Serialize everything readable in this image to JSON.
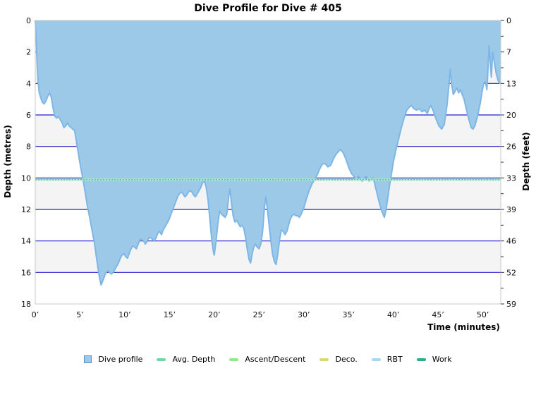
{
  "title": "Dive Profile for Dive # 405",
  "axes": {
    "x": {
      "label": "Time (minutes)",
      "tick_labels": [
        "0’",
        "5’",
        "10’",
        "15’",
        "20’",
        "25’",
        "30’",
        "35’",
        "40’",
        "45’",
        "50’"
      ],
      "tick_minutes": [
        0,
        5,
        10,
        15,
        20,
        25,
        30,
        35,
        40,
        45,
        50
      ],
      "max_minutes": 52
    },
    "y_left": {
      "label": "Depth (metres)",
      "tick_labels": [
        "0",
        "2",
        "4",
        "6",
        "8",
        "10",
        "12",
        "14",
        "16",
        "18"
      ],
      "tick_metres": [
        0,
        2,
        4,
        6,
        8,
        10,
        12,
        14,
        16,
        18
      ],
      "max_metres": 18
    },
    "y_right": {
      "label": "Depth (feet)",
      "tick_labels": [
        "0",
        "7",
        "13",
        "20",
        "26",
        "33",
        "39",
        "46",
        "52",
        "59"
      ],
      "tick_metres": [
        0,
        2,
        4,
        6,
        8,
        10,
        12,
        14,
        16,
        18
      ]
    }
  },
  "legend": {
    "items": [
      {
        "label": "Dive profile",
        "shape": "square",
        "color": "#9DC9E8",
        "border": "#5B8FC4"
      },
      {
        "label": "Avg. Depth",
        "shape": "line",
        "color": "#6FD9A5"
      },
      {
        "label": "Ascent/Descent",
        "shape": "line",
        "color": "#90E890"
      },
      {
        "label": "Deco.",
        "shape": "line",
        "color": "#D5DE70"
      },
      {
        "label": "RBT",
        "shape": "line",
        "color": "#A9D9F2"
      },
      {
        "label": "Work",
        "shape": "line",
        "color": "#2FAE85"
      }
    ]
  },
  "chart_data": {
    "type": "area",
    "title": "Dive Profile for Dive # 405",
    "xlabel": "Time (minutes)",
    "ylabel_left": "Depth (metres)",
    "ylabel_right": "Depth (feet)",
    "x_range_minutes": [
      0,
      52
    ],
    "depth_range_metres": [
      0,
      18
    ],
    "avg_depth_metres": 10.1,
    "max_depth_metres": 16.8,
    "grid": {
      "gridlines_metres": [
        2,
        4,
        6,
        8,
        10,
        12,
        14,
        16
      ],
      "gray_bands_metres": [
        [
          2,
          4
        ],
        [
          6,
          8
        ],
        [
          10,
          12
        ],
        [
          14,
          16
        ]
      ],
      "minor_tick_metres_right": [
        1,
        3,
        5,
        7,
        9,
        11,
        13,
        15,
        17
      ]
    },
    "colors": {
      "profile_fill": "#9DC9E8",
      "profile_line": "#7EB6E6",
      "gridline": "#2323CB",
      "band": "#F4F4F4",
      "plot_border": "#C9C9C9",
      "avg_depth_line": "#58C995",
      "avg_depth_underlay": "#AEE8CC"
    },
    "series": [
      {
        "name": "Dive profile",
        "points_time_depth": [
          [
            0,
            0
          ],
          [
            0.1,
            1.2
          ],
          [
            0.2,
            2.6
          ],
          [
            0.3,
            3.8
          ],
          [
            0.45,
            4.6
          ],
          [
            0.6,
            4.9
          ],
          [
            0.8,
            5.2
          ],
          [
            1.0,
            5.3
          ],
          [
            1.2,
            5.1
          ],
          [
            1.4,
            4.8
          ],
          [
            1.6,
            4.6
          ],
          [
            1.8,
            4.9
          ],
          [
            2.0,
            5.6
          ],
          [
            2.2,
            6.1
          ],
          [
            2.4,
            6.2
          ],
          [
            2.6,
            6.1
          ],
          [
            2.8,
            6.3
          ],
          [
            3.0,
            6.5
          ],
          [
            3.2,
            6.8
          ],
          [
            3.4,
            6.7
          ],
          [
            3.6,
            6.5
          ],
          [
            3.8,
            6.7
          ],
          [
            4.0,
            6.8
          ],
          [
            4.2,
            6.9
          ],
          [
            4.4,
            7.0
          ],
          [
            4.6,
            7.7
          ],
          [
            4.8,
            8.4
          ],
          [
            5.0,
            9.1
          ],
          [
            5.2,
            9.7
          ],
          [
            5.4,
            10.3
          ],
          [
            5.6,
            11.0
          ],
          [
            5.8,
            11.7
          ],
          [
            6.0,
            12.3
          ],
          [
            6.2,
            12.9
          ],
          [
            6.4,
            13.5
          ],
          [
            6.6,
            14.1
          ],
          [
            6.8,
            14.9
          ],
          [
            7.0,
            15.7
          ],
          [
            7.2,
            16.4
          ],
          [
            7.35,
            16.8
          ],
          [
            7.5,
            16.6
          ],
          [
            7.7,
            16.3
          ],
          [
            7.9,
            16.0
          ],
          [
            8.1,
            15.9
          ],
          [
            8.3,
            16.0
          ],
          [
            8.5,
            16.1
          ],
          [
            8.7,
            16.0
          ],
          [
            8.9,
            15.8
          ],
          [
            9.1,
            15.6
          ],
          [
            9.3,
            15.4
          ],
          [
            9.5,
            15.1
          ],
          [
            9.7,
            14.9
          ],
          [
            9.9,
            14.8
          ],
          [
            10.1,
            15.0
          ],
          [
            10.3,
            15.1
          ],
          [
            10.5,
            14.8
          ],
          [
            10.7,
            14.5
          ],
          [
            10.9,
            14.3
          ],
          [
            11.1,
            14.4
          ],
          [
            11.3,
            14.5
          ],
          [
            11.5,
            14.2
          ],
          [
            11.7,
            13.9
          ],
          [
            11.9,
            13.9
          ],
          [
            12.1,
            14.0
          ],
          [
            12.3,
            14.2
          ],
          [
            12.5,
            14.0
          ],
          [
            12.7,
            13.8
          ],
          [
            12.9,
            13.8
          ],
          [
            13.1,
            13.9
          ],
          [
            13.3,
            14.0
          ],
          [
            13.5,
            13.8
          ],
          [
            13.7,
            13.5
          ],
          [
            13.9,
            13.4
          ],
          [
            14.1,
            13.6
          ],
          [
            14.3,
            13.3
          ],
          [
            14.5,
            13.1
          ],
          [
            14.7,
            12.9
          ],
          [
            14.9,
            12.7
          ],
          [
            15.1,
            12.4
          ],
          [
            15.3,
            12.1
          ],
          [
            15.5,
            11.8
          ],
          [
            15.7,
            11.5
          ],
          [
            15.9,
            11.2
          ],
          [
            16.1,
            11.0
          ],
          [
            16.3,
            10.9
          ],
          [
            16.5,
            11.0
          ],
          [
            16.7,
            11.2
          ],
          [
            16.9,
            11.1
          ],
          [
            17.1,
            10.9
          ],
          [
            17.3,
            10.8
          ],
          [
            17.5,
            10.9
          ],
          [
            17.7,
            11.1
          ],
          [
            17.9,
            11.2
          ],
          [
            18.1,
            11.0
          ],
          [
            18.3,
            10.8
          ],
          [
            18.5,
            10.6
          ],
          [
            18.7,
            10.3
          ],
          [
            18.9,
            10.2
          ],
          [
            19.1,
            10.6
          ],
          [
            19.3,
            11.4
          ],
          [
            19.5,
            12.6
          ],
          [
            19.7,
            13.8
          ],
          [
            19.9,
            14.7
          ],
          [
            20.0,
            14.9
          ],
          [
            20.2,
            14.0
          ],
          [
            20.4,
            12.9
          ],
          [
            20.6,
            12.1
          ],
          [
            20.8,
            12.3
          ],
          [
            21.0,
            12.4
          ],
          [
            21.2,
            12.5
          ],
          [
            21.4,
            12.3
          ],
          [
            21.6,
            11.2
          ],
          [
            21.75,
            10.7
          ],
          [
            21.9,
            11.5
          ],
          [
            22.1,
            12.4
          ],
          [
            22.3,
            12.8
          ],
          [
            22.5,
            12.7
          ],
          [
            22.7,
            12.9
          ],
          [
            22.9,
            13.1
          ],
          [
            23.1,
            13.0
          ],
          [
            23.3,
            13.2
          ],
          [
            23.5,
            13.8
          ],
          [
            23.7,
            14.6
          ],
          [
            23.9,
            15.2
          ],
          [
            24.05,
            15.4
          ],
          [
            24.2,
            14.9
          ],
          [
            24.4,
            14.4
          ],
          [
            24.6,
            14.2
          ],
          [
            24.8,
            14.4
          ],
          [
            25.0,
            14.5
          ],
          [
            25.2,
            14.2
          ],
          [
            25.4,
            13.4
          ],
          [
            25.6,
            11.9
          ],
          [
            25.75,
            11.2
          ],
          [
            25.9,
            11.8
          ],
          [
            26.1,
            12.9
          ],
          [
            26.3,
            13.9
          ],
          [
            26.5,
            14.8
          ],
          [
            26.7,
            15.3
          ],
          [
            26.9,
            15.5
          ],
          [
            27.1,
            14.8
          ],
          [
            27.3,
            13.9
          ],
          [
            27.5,
            13.3
          ],
          [
            27.7,
            13.4
          ],
          [
            27.9,
            13.6
          ],
          [
            28.1,
            13.4
          ],
          [
            28.3,
            13.0
          ],
          [
            28.5,
            12.6
          ],
          [
            28.7,
            12.4
          ],
          [
            28.9,
            12.3
          ],
          [
            29.1,
            12.4
          ],
          [
            29.3,
            12.4
          ],
          [
            29.5,
            12.5
          ],
          [
            29.7,
            12.3
          ],
          [
            30.0,
            11.9
          ],
          [
            30.3,
            11.3
          ],
          [
            30.6,
            10.8
          ],
          [
            30.9,
            10.4
          ],
          [
            31.2,
            10.1
          ],
          [
            31.5,
            9.8
          ],
          [
            31.8,
            9.4
          ],
          [
            32.1,
            9.1
          ],
          [
            32.4,
            9.1
          ],
          [
            32.7,
            9.3
          ],
          [
            33.0,
            9.2
          ],
          [
            33.3,
            8.8
          ],
          [
            33.6,
            8.5
          ],
          [
            33.9,
            8.3
          ],
          [
            34.1,
            8.2
          ],
          [
            34.4,
            8.4
          ],
          [
            34.7,
            8.8
          ],
          [
            35.0,
            9.3
          ],
          [
            35.3,
            9.7
          ],
          [
            35.6,
            9.9
          ],
          [
            35.9,
            10.1
          ],
          [
            36.1,
            9.9
          ],
          [
            36.3,
            10.0
          ],
          [
            36.5,
            10.2
          ],
          [
            36.7,
            10.1
          ],
          [
            36.9,
            9.9
          ],
          [
            37.1,
            10.0
          ],
          [
            37.3,
            10.2
          ],
          [
            37.5,
            10.1
          ],
          [
            37.7,
            10.0
          ],
          [
            37.9,
            10.3
          ],
          [
            38.1,
            10.8
          ],
          [
            38.4,
            11.5
          ],
          [
            38.7,
            12.1
          ],
          [
            39.0,
            12.5
          ],
          [
            39.2,
            12.0
          ],
          [
            39.4,
            11.2
          ],
          [
            39.6,
            10.4
          ],
          [
            39.8,
            9.7
          ],
          [
            40.0,
            9.0
          ],
          [
            40.3,
            8.2
          ],
          [
            40.6,
            7.5
          ],
          [
            40.9,
            6.8
          ],
          [
            41.2,
            6.2
          ],
          [
            41.5,
            5.7
          ],
          [
            41.8,
            5.5
          ],
          [
            42.0,
            5.4
          ],
          [
            42.3,
            5.6
          ],
          [
            42.6,
            5.7
          ],
          [
            42.9,
            5.6
          ],
          [
            43.2,
            5.8
          ],
          [
            43.5,
            5.7
          ],
          [
            43.8,
            5.9
          ],
          [
            44.0,
            5.6
          ],
          [
            44.2,
            5.4
          ],
          [
            44.5,
            5.8
          ],
          [
            44.8,
            6.3
          ],
          [
            45.1,
            6.7
          ],
          [
            45.4,
            6.9
          ],
          [
            45.7,
            6.6
          ],
          [
            46.0,
            5.4
          ],
          [
            46.2,
            4.2
          ],
          [
            46.35,
            3.1
          ],
          [
            46.5,
            4.0
          ],
          [
            46.7,
            4.7
          ],
          [
            46.9,
            4.5
          ],
          [
            47.1,
            4.3
          ],
          [
            47.3,
            4.6
          ],
          [
            47.5,
            4.4
          ],
          [
            47.7,
            4.7
          ],
          [
            47.9,
            5.0
          ],
          [
            48.1,
            5.5
          ],
          [
            48.4,
            6.2
          ],
          [
            48.7,
            6.8
          ],
          [
            48.9,
            6.9
          ],
          [
            49.1,
            6.7
          ],
          [
            49.4,
            6.1
          ],
          [
            49.7,
            5.3
          ],
          [
            49.9,
            4.6
          ],
          [
            50.1,
            4.0
          ],
          [
            50.3,
            3.9
          ],
          [
            50.45,
            4.4
          ],
          [
            50.55,
            3.4
          ],
          [
            50.7,
            1.6
          ],
          [
            50.85,
            2.8
          ],
          [
            50.95,
            3.6
          ],
          [
            51.1,
            2.0
          ],
          [
            51.3,
            2.7
          ],
          [
            51.5,
            3.4
          ],
          [
            51.7,
            3.8
          ],
          [
            51.9,
            4.0
          ],
          [
            52.0,
            4.0
          ]
        ]
      }
    ]
  }
}
